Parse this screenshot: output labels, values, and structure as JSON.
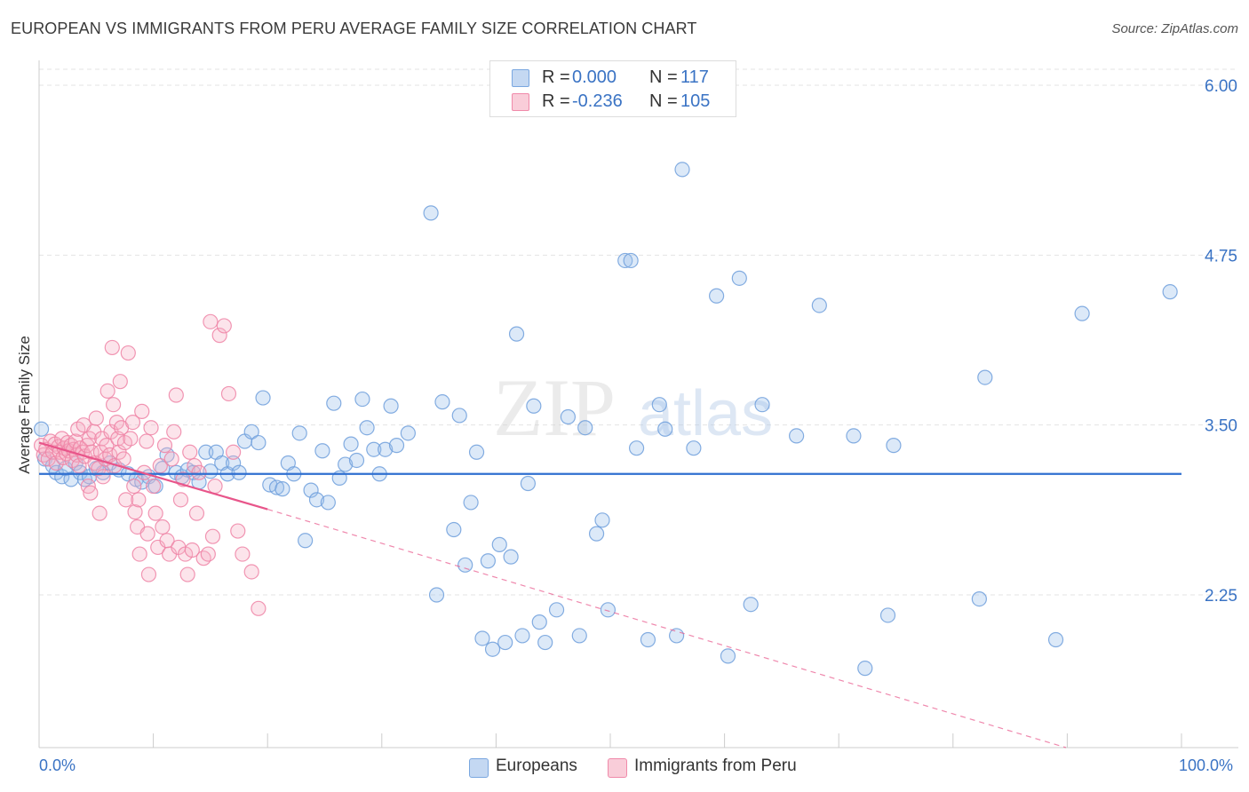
{
  "title": "EUROPEAN VS IMMIGRANTS FROM PERU AVERAGE FAMILY SIZE CORRELATION CHART",
  "source": "Source: ZipAtlas.com",
  "watermark": {
    "zip": "ZIP",
    "atlas": "atlas"
  },
  "legend": {
    "r_label": "R =",
    "n_label": "N =",
    "entries": [
      {
        "name": "Europeans",
        "r": "0.000",
        "n": "117",
        "color": "#7aa7e0"
      },
      {
        "name": "Immigrants from Peru",
        "r": "-0.236",
        "n": "105",
        "color": "#f08aaa"
      }
    ]
  },
  "chart_data": {
    "type": "scatter",
    "title": "EUROPEAN VS IMMIGRANTS FROM PERU AVERAGE FAMILY SIZE CORRELATION CHART",
    "xlabel": "",
    "ylabel": "Average Family Size",
    "xlim": [
      0,
      100
    ],
    "ylim": [
      1.25,
      6.15
    ],
    "x_tick_labels": [
      "0.0%",
      "100.0%"
    ],
    "y_ticks": [
      2.25,
      3.5,
      4.75,
      6.0
    ],
    "y_tick_labels": [
      "2.25",
      "3.50",
      "4.75",
      "6.00"
    ],
    "grid": true,
    "series": [
      {
        "name": "Europeans",
        "color": "#7aa7e0",
        "trend": {
          "x0": 0,
          "y0": 3.14,
          "x1": 100,
          "y1": 3.14,
          "dashed_extension": false
        },
        "points": [
          [
            0.2,
            3.47
          ],
          [
            0.5,
            3.25
          ],
          [
            1.2,
            3.2
          ],
          [
            1.5,
            3.15
          ],
          [
            2.0,
            3.12
          ],
          [
            2.3,
            3.18
          ],
          [
            2.8,
            3.1
          ],
          [
            3.2,
            3.22
          ],
          [
            3.6,
            3.15
          ],
          [
            4.0,
            3.1
          ],
          [
            4.4,
            3.12
          ],
          [
            5.0,
            3.18
          ],
          [
            5.6,
            3.15
          ],
          [
            6.2,
            3.22
          ],
          [
            7.0,
            3.17
          ],
          [
            7.8,
            3.14
          ],
          [
            8.5,
            3.1
          ],
          [
            9.0,
            3.08
          ],
          [
            9.6,
            3.12
          ],
          [
            10.2,
            3.05
          ],
          [
            10.8,
            3.18
          ],
          [
            11.2,
            3.28
          ],
          [
            12.0,
            3.15
          ],
          [
            12.5,
            3.12
          ],
          [
            13.0,
            3.17
          ],
          [
            13.5,
            3.15
          ],
          [
            14.0,
            3.08
          ],
          [
            14.6,
            3.3
          ],
          [
            15.0,
            3.16
          ],
          [
            15.5,
            3.3
          ],
          [
            16.0,
            3.22
          ],
          [
            16.5,
            3.14
          ],
          [
            17.0,
            3.22
          ],
          [
            17.5,
            3.15
          ],
          [
            18.0,
            3.38
          ],
          [
            18.6,
            3.45
          ],
          [
            19.2,
            3.37
          ],
          [
            19.6,
            3.7
          ],
          [
            20.2,
            3.06
          ],
          [
            20.8,
            3.04
          ],
          [
            21.3,
            3.03
          ],
          [
            21.8,
            3.22
          ],
          [
            22.3,
            3.14
          ],
          [
            22.8,
            3.44
          ],
          [
            23.3,
            2.65
          ],
          [
            23.8,
            3.02
          ],
          [
            24.3,
            2.95
          ],
          [
            24.8,
            3.31
          ],
          [
            25.3,
            2.93
          ],
          [
            25.8,
            3.66
          ],
          [
            26.3,
            3.11
          ],
          [
            26.8,
            3.21
          ],
          [
            27.3,
            3.36
          ],
          [
            27.8,
            3.24
          ],
          [
            28.3,
            3.69
          ],
          [
            28.7,
            3.48
          ],
          [
            29.3,
            3.32
          ],
          [
            29.8,
            3.14
          ],
          [
            30.3,
            3.32
          ],
          [
            30.8,
            3.64
          ],
          [
            31.3,
            3.35
          ],
          [
            32.3,
            3.44
          ],
          [
            34.3,
            5.06
          ],
          [
            34.8,
            2.25
          ],
          [
            35.3,
            3.67
          ],
          [
            36.3,
            2.73
          ],
          [
            36.8,
            3.57
          ],
          [
            37.3,
            2.47
          ],
          [
            37.8,
            2.93
          ],
          [
            38.3,
            3.3
          ],
          [
            38.8,
            1.93
          ],
          [
            39.3,
            2.5
          ],
          [
            39.7,
            1.85
          ],
          [
            40.3,
            2.62
          ],
          [
            40.8,
            1.9
          ],
          [
            41.3,
            2.53
          ],
          [
            41.8,
            4.17
          ],
          [
            42.3,
            1.95
          ],
          [
            42.8,
            3.07
          ],
          [
            43.3,
            3.64
          ],
          [
            43.8,
            2.05
          ],
          [
            44.3,
            1.9
          ],
          [
            45.3,
            2.14
          ],
          [
            46.3,
            3.56
          ],
          [
            47.3,
            1.95
          ],
          [
            47.8,
            3.48
          ],
          [
            48.8,
            2.7
          ],
          [
            49.3,
            2.8
          ],
          [
            49.8,
            2.14
          ],
          [
            51.3,
            4.71
          ],
          [
            51.8,
            4.71
          ],
          [
            52.3,
            3.33
          ],
          [
            53.3,
            1.92
          ],
          [
            54.3,
            3.65
          ],
          [
            54.8,
            3.47
          ],
          [
            55.8,
            1.95
          ],
          [
            56.3,
            5.38
          ],
          [
            57.3,
            3.33
          ],
          [
            59.3,
            4.45
          ],
          [
            60.3,
            1.8
          ],
          [
            61.3,
            4.58
          ],
          [
            62.3,
            2.18
          ],
          [
            63.3,
            3.65
          ],
          [
            66.3,
            3.42
          ],
          [
            68.3,
            4.38
          ],
          [
            71.3,
            3.42
          ],
          [
            72.3,
            1.71
          ],
          [
            74.3,
            2.1
          ],
          [
            74.8,
            3.35
          ],
          [
            82.3,
            2.22
          ],
          [
            82.8,
            3.85
          ],
          [
            89.0,
            1.92
          ],
          [
            91.3,
            4.32
          ],
          [
            99.0,
            4.48
          ]
        ]
      },
      {
        "name": "Immigrants from Peru",
        "color": "#f08aaa",
        "trend": {
          "x0": 0,
          "y0": 3.37,
          "x1": 20,
          "y1": 2.88,
          "dashed_to": {
            "x": 100,
            "y": 0.9
          }
        },
        "points": [
          [
            0.2,
            3.35
          ],
          [
            0.4,
            3.28
          ],
          [
            0.6,
            3.32
          ],
          [
            0.8,
            3.25
          ],
          [
            1.0,
            3.38
          ],
          [
            1.2,
            3.3
          ],
          [
            1.4,
            3.36
          ],
          [
            1.5,
            3.22
          ],
          [
            1.7,
            3.34
          ],
          [
            1.8,
            3.3
          ],
          [
            2.0,
            3.4
          ],
          [
            2.1,
            3.26
          ],
          [
            2.2,
            3.33
          ],
          [
            2.4,
            3.29
          ],
          [
            2.5,
            3.37
          ],
          [
            2.6,
            3.31
          ],
          [
            2.8,
            3.35
          ],
          [
            2.9,
            3.24
          ],
          [
            3.0,
            3.32
          ],
          [
            3.2,
            3.38
          ],
          [
            3.3,
            3.28
          ],
          [
            3.4,
            3.47
          ],
          [
            3.5,
            3.2
          ],
          [
            3.6,
            3.33
          ],
          [
            3.8,
            3.3
          ],
          [
            3.9,
            3.5
          ],
          [
            4.0,
            3.27
          ],
          [
            4.2,
            3.35
          ],
          [
            4.3,
            3.05
          ],
          [
            4.4,
            3.4
          ],
          [
            4.5,
            3.0
          ],
          [
            4.6,
            3.3
          ],
          [
            4.8,
            3.45
          ],
          [
            4.9,
            3.22
          ],
          [
            5.0,
            3.55
          ],
          [
            5.2,
            3.18
          ],
          [
            5.3,
            2.85
          ],
          [
            5.4,
            3.3
          ],
          [
            5.5,
            3.4
          ],
          [
            5.6,
            3.12
          ],
          [
            5.8,
            3.25
          ],
          [
            5.9,
            3.35
          ],
          [
            6.0,
            3.75
          ],
          [
            6.2,
            3.28
          ],
          [
            6.3,
            3.45
          ],
          [
            6.4,
            4.07
          ],
          [
            6.5,
            3.65
          ],
          [
            6.6,
            3.2
          ],
          [
            6.8,
            3.52
          ],
          [
            6.9,
            3.4
          ],
          [
            7.0,
            3.3
          ],
          [
            7.1,
            3.82
          ],
          [
            7.2,
            3.48
          ],
          [
            7.4,
            3.25
          ],
          [
            7.5,
            3.37
          ],
          [
            7.6,
            2.95
          ],
          [
            7.8,
            4.03
          ],
          [
            8.0,
            3.4
          ],
          [
            8.2,
            3.52
          ],
          [
            8.3,
            3.05
          ],
          [
            8.4,
            2.86
          ],
          [
            8.6,
            2.75
          ],
          [
            8.7,
            2.95
          ],
          [
            8.8,
            2.55
          ],
          [
            9.0,
            3.6
          ],
          [
            9.2,
            3.15
          ],
          [
            9.4,
            3.38
          ],
          [
            9.5,
            2.7
          ],
          [
            9.6,
            2.4
          ],
          [
            9.8,
            3.48
          ],
          [
            10.0,
            3.05
          ],
          [
            10.2,
            2.85
          ],
          [
            10.4,
            2.6
          ],
          [
            10.6,
            3.2
          ],
          [
            10.8,
            2.75
          ],
          [
            11.0,
            3.35
          ],
          [
            11.2,
            2.65
          ],
          [
            11.4,
            2.55
          ],
          [
            11.6,
            3.25
          ],
          [
            11.8,
            3.45
          ],
          [
            12.0,
            3.72
          ],
          [
            12.2,
            2.6
          ],
          [
            12.4,
            2.95
          ],
          [
            12.6,
            3.1
          ],
          [
            12.8,
            2.55
          ],
          [
            13.0,
            2.4
          ],
          [
            13.2,
            3.3
          ],
          [
            13.4,
            2.58
          ],
          [
            13.6,
            3.2
          ],
          [
            13.8,
            2.85
          ],
          [
            14.0,
            3.15
          ],
          [
            14.4,
            2.52
          ],
          [
            14.8,
            2.55
          ],
          [
            15.0,
            4.26
          ],
          [
            15.2,
            2.68
          ],
          [
            15.4,
            3.05
          ],
          [
            15.8,
            4.16
          ],
          [
            16.2,
            4.23
          ],
          [
            16.6,
            3.73
          ],
          [
            17.0,
            3.3
          ],
          [
            17.4,
            2.72
          ],
          [
            17.8,
            2.55
          ],
          [
            18.6,
            2.42
          ],
          [
            19.2,
            2.15
          ]
        ]
      }
    ]
  }
}
